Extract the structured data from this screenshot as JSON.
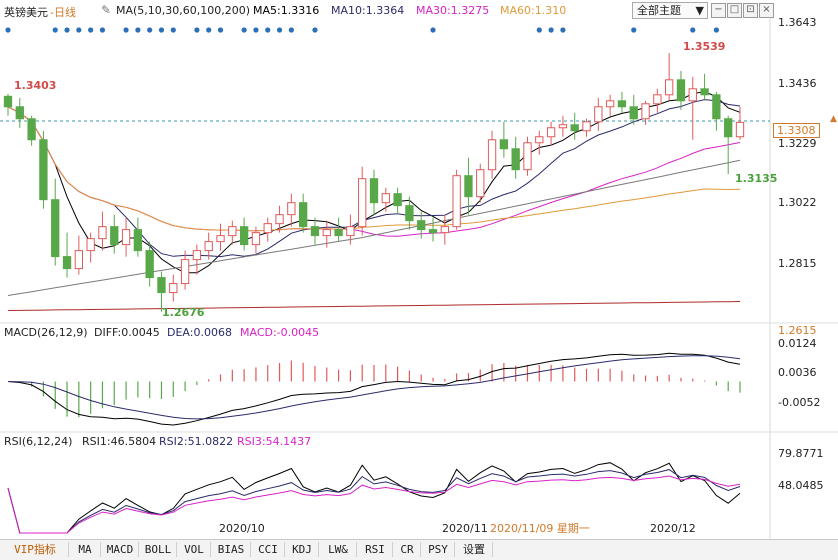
{
  "header": {
    "symbol": "英镑美元",
    "period": "-日线",
    "ma_params": "MA(5,10,30,60,100,200)",
    "ma5": "MA5:1.3316",
    "ma10": "MA10:1.3364",
    "ma30": "MA30:1.3275",
    "ma60": "MA60:1.310",
    "theme_select": "全部主题"
  },
  "macd_header": {
    "params": "MACD(26,12,9)",
    "diff": "DIFF:0.0045",
    "dea": "DEA:0.0068",
    "macd": "MACD:-0.0045"
  },
  "rsi_header": {
    "params": "RSI(6,12,24)",
    "rsi1": "RSI1:46.5804",
    "rsi2": "RSI2:51.0822",
    "rsi3": "RSI3:54.1437"
  },
  "price_axis": [
    "1.3643",
    "1.3436",
    "1.3229",
    "1.3022",
    "1.2815",
    "1.2615"
  ],
  "current_price": "1.3308",
  "annotations": {
    "high_left": "1.3403",
    "low": "1.2676",
    "high": "1.3539",
    "recent_low": "1.3135"
  },
  "macd_axis": [
    "0.0124",
    "0.0036",
    "-0.0052"
  ],
  "rsi_axis": [
    "79.8771",
    "48.0485"
  ],
  "date_labels": [
    "2020/10",
    "2020/11",
    "2020/11/09 星期一",
    "2020/12"
  ],
  "tabs": [
    {
      "label": "VIP指标",
      "active": true
    },
    {
      "label": "MA"
    },
    {
      "label": "MACD"
    },
    {
      "label": "BOLL"
    },
    {
      "label": "VOL"
    },
    {
      "label": "BIAS"
    },
    {
      "label": "CCI"
    },
    {
      "label": "KDJ"
    },
    {
      "label": "LW&"
    },
    {
      "label": "RSI"
    },
    {
      "label": "CR"
    },
    {
      "label": "PSY"
    },
    {
      "label": "设置"
    }
  ],
  "colors": {
    "up": "#e05a5a",
    "down": "#58a84a",
    "ma5": "#000000",
    "ma10": "#2b2b6b",
    "ma30": "#d822c8",
    "ma60": "#e09a3a",
    "ma100": "#7a7a7a",
    "ma200": "#b02a2a",
    "dot": "#2a6fb8"
  },
  "chart_data": [
    {
      "type": "candlestick",
      "ylim": [
        1.2615,
        1.3643
      ],
      "candles": [
        [
          1.3395,
          1.3403,
          1.333,
          1.336
        ],
        [
          1.336,
          1.339,
          1.329,
          1.332
        ],
        [
          1.332,
          1.333,
          1.323,
          1.325
        ],
        [
          1.325,
          1.328,
          1.302,
          1.305
        ],
        [
          1.305,
          1.312,
          1.283,
          1.286
        ],
        [
          1.286,
          1.294,
          1.279,
          1.282
        ],
        [
          1.282,
          1.293,
          1.28,
          1.288
        ],
        [
          1.288,
          1.294,
          1.284,
          1.292
        ],
        [
          1.292,
          1.301,
          1.288,
          1.296
        ],
        [
          1.296,
          1.3,
          1.287,
          1.29
        ],
        [
          1.29,
          1.299,
          1.286,
          1.295
        ],
        [
          1.295,
          1.299,
          1.286,
          1.288
        ],
        [
          1.288,
          1.291,
          1.276,
          1.279
        ],
        [
          1.279,
          1.281,
          1.2676,
          1.274
        ],
        [
          1.274,
          1.28,
          1.271,
          1.277
        ],
        [
          1.277,
          1.288,
          1.275,
          1.285
        ],
        [
          1.285,
          1.29,
          1.28,
          1.288
        ],
        [
          1.288,
          1.294,
          1.285,
          1.291
        ],
        [
          1.291,
          1.297,
          1.288,
          1.293
        ],
        [
          1.293,
          1.298,
          1.29,
          1.296
        ],
        [
          1.296,
          1.299,
          1.288,
          1.29
        ],
        [
          1.29,
          1.296,
          1.287,
          1.294
        ],
        [
          1.294,
          1.299,
          1.291,
          1.297
        ],
        [
          1.297,
          1.303,
          1.294,
          1.3
        ],
        [
          1.3,
          1.307,
          1.296,
          1.304
        ],
        [
          1.304,
          1.307,
          1.294,
          1.296
        ],
        [
          1.296,
          1.299,
          1.29,
          1.293
        ],
        [
          1.293,
          1.298,
          1.289,
          1.295
        ],
        [
          1.295,
          1.299,
          1.291,
          1.293
        ],
        [
          1.293,
          1.3,
          1.29,
          1.296
        ],
        [
          1.296,
          1.316,
          1.293,
          1.312
        ],
        [
          1.312,
          1.315,
          1.3,
          1.304
        ],
        [
          1.304,
          1.309,
          1.301,
          1.307
        ],
        [
          1.307,
          1.309,
          1.3,
          1.303
        ],
        [
          1.303,
          1.306,
          1.295,
          1.298
        ],
        [
          1.298,
          1.301,
          1.292,
          1.295
        ],
        [
          1.295,
          1.299,
          1.291,
          1.294
        ],
        [
          1.294,
          1.3,
          1.29,
          1.296
        ],
        [
          1.296,
          1.315,
          1.295,
          1.313
        ],
        [
          1.313,
          1.319,
          1.3,
          1.306
        ],
        [
          1.306,
          1.317,
          1.304,
          1.315
        ],
        [
          1.315,
          1.328,
          1.312,
          1.325
        ],
        [
          1.325,
          1.331,
          1.319,
          1.322
        ],
        [
          1.322,
          1.326,
          1.312,
          1.315
        ],
        [
          1.315,
          1.326,
          1.313,
          1.324
        ],
        [
          1.324,
          1.328,
          1.32,
          1.326
        ],
        [
          1.326,
          1.331,
          1.323,
          1.329
        ],
        [
          1.329,
          1.333,
          1.326,
          1.33
        ],
        [
          1.33,
          1.334,
          1.325,
          1.328
        ],
        [
          1.328,
          1.332,
          1.326,
          1.331
        ],
        [
          1.331,
          1.339,
          1.328,
          1.336
        ],
        [
          1.336,
          1.34,
          1.333,
          1.338
        ],
        [
          1.338,
          1.341,
          1.334,
          1.336
        ],
        [
          1.336,
          1.34,
          1.33,
          1.332
        ],
        [
          1.332,
          1.338,
          1.33,
          1.337
        ],
        [
          1.337,
          1.342,
          1.334,
          1.34
        ],
        [
          1.34,
          1.3539,
          1.338,
          1.345
        ],
        [
          1.345,
          1.348,
          1.335,
          1.338
        ],
        [
          1.338,
          1.346,
          1.325,
          1.342
        ],
        [
          1.342,
          1.347,
          1.338,
          1.34
        ],
        [
          1.34,
          1.341,
          1.328,
          1.332
        ],
        [
          1.332,
          1.333,
          1.3135,
          1.326
        ],
        [
          1.326,
          1.336,
          1.325,
          1.3308
        ]
      ]
    },
    {
      "type": "line",
      "series": [
        {
          "name": "DIFF"
        },
        {
          "name": "DEA"
        },
        {
          "name": "MACD"
        }
      ]
    },
    {
      "type": "line",
      "series": [
        {
          "name": "RSI1"
        },
        {
          "name": "RSI2"
        },
        {
          "name": "RSI3"
        }
      ]
    }
  ]
}
